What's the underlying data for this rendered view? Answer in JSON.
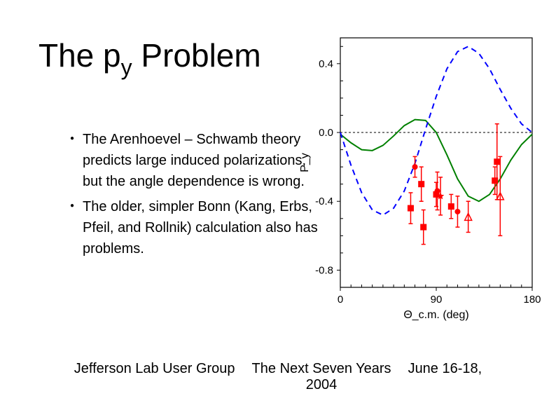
{
  "title": {
    "prefix": "The p",
    "sub": "y",
    "suffix": " Problem"
  },
  "bullets": [
    "The Arenhoevel – Schwamb theory predicts large induced polarizations, but the angle dependence is wrong.",
    "The older, simpler Bonn (Kang, Erbs, Pfeil, and Rollnik) calculation also has problems."
  ],
  "footer": {
    "left": "Jefferson Lab User Group",
    "center_line1": "The Next Seven Years",
    "center_line2": "2004",
    "right": "June 16-18,"
  },
  "chart": {
    "type": "line+scatter",
    "xlim": [
      0,
      180
    ],
    "ylim": [
      -0.9,
      0.55
    ],
    "xticks": [
      0,
      90,
      180
    ],
    "yticks": [
      -0.8,
      -0.4,
      0.0,
      0.4
    ],
    "xlabel": "Θ_c.m. (deg)",
    "ylabel": "P_y",
    "background_color": "#ffffff",
    "axis_color": "#000000",
    "tick_fontsize": 15,
    "label_fontsize": 16,
    "curves": [
      {
        "name": "green_solid",
        "color": "#008000",
        "width": 2,
        "dash": "none",
        "points": [
          [
            0,
            -0.01
          ],
          [
            10,
            -0.06
          ],
          [
            20,
            -0.1
          ],
          [
            30,
            -0.105
          ],
          [
            40,
            -0.075
          ],
          [
            50,
            -0.02
          ],
          [
            60,
            0.04
          ],
          [
            70,
            0.075
          ],
          [
            80,
            0.07
          ],
          [
            90,
            0.0
          ],
          [
            100,
            -0.13
          ],
          [
            110,
            -0.27
          ],
          [
            120,
            -0.37
          ],
          [
            130,
            -0.4
          ],
          [
            140,
            -0.36
          ],
          [
            150,
            -0.27
          ],
          [
            160,
            -0.16
          ],
          [
            170,
            -0.07
          ],
          [
            180,
            -0.01
          ]
        ]
      },
      {
        "name": "blue_dashed",
        "color": "#0000ff",
        "width": 2,
        "dash": "8,6",
        "points": [
          [
            0,
            0.0
          ],
          [
            10,
            -0.19
          ],
          [
            20,
            -0.35
          ],
          [
            30,
            -0.45
          ],
          [
            40,
            -0.48
          ],
          [
            50,
            -0.44
          ],
          [
            60,
            -0.34
          ],
          [
            70,
            -0.18
          ],
          [
            80,
            0.02
          ],
          [
            90,
            0.21
          ],
          [
            100,
            0.37
          ],
          [
            110,
            0.47
          ],
          [
            120,
            0.5
          ],
          [
            130,
            0.46
          ],
          [
            140,
            0.37
          ],
          [
            150,
            0.25
          ],
          [
            160,
            0.14
          ],
          [
            170,
            0.05
          ],
          [
            180,
            0.0
          ]
        ]
      }
    ],
    "zero_line": {
      "color": "#000000",
      "dash": "3,3"
    },
    "data_squares": {
      "color": "#ff0000",
      "size": 9,
      "points": [
        {
          "x": 66,
          "y": -0.44,
          "ey": 0.09
        },
        {
          "x": 76,
          "y": -0.3,
          "ey": 0.1
        },
        {
          "x": 78,
          "y": -0.55,
          "ey": 0.1
        },
        {
          "x": 90,
          "y": -0.36,
          "ey": 0.07
        },
        {
          "x": 104,
          "y": -0.43,
          "ey": 0.07
        },
        {
          "x": 145,
          "y": -0.28,
          "ey": 0.08
        },
        {
          "x": 147,
          "y": -0.17,
          "ey": 0.22
        }
      ]
    },
    "data_circles": {
      "color": "#ff0000",
      "size": 8,
      "points": [
        {
          "x": 70,
          "y": -0.2,
          "ey": 0.06
        },
        {
          "x": 91,
          "y": -0.34,
          "ey": 0.11
        },
        {
          "x": 110,
          "y": -0.46,
          "ey": 0.09
        }
      ]
    },
    "data_triangles_open": {
      "color": "#ff0000",
      "size": 10,
      "points": [
        {
          "x": 120,
          "y": -0.49,
          "ey": 0.09
        },
        {
          "x": 150,
          "y": -0.37,
          "ey": 0.23
        }
      ]
    },
    "data_star": {
      "color": "#ff0000",
      "size": 11,
      "points": [
        {
          "x": 94,
          "y": -0.37,
          "ey": 0.11
        }
      ]
    }
  }
}
